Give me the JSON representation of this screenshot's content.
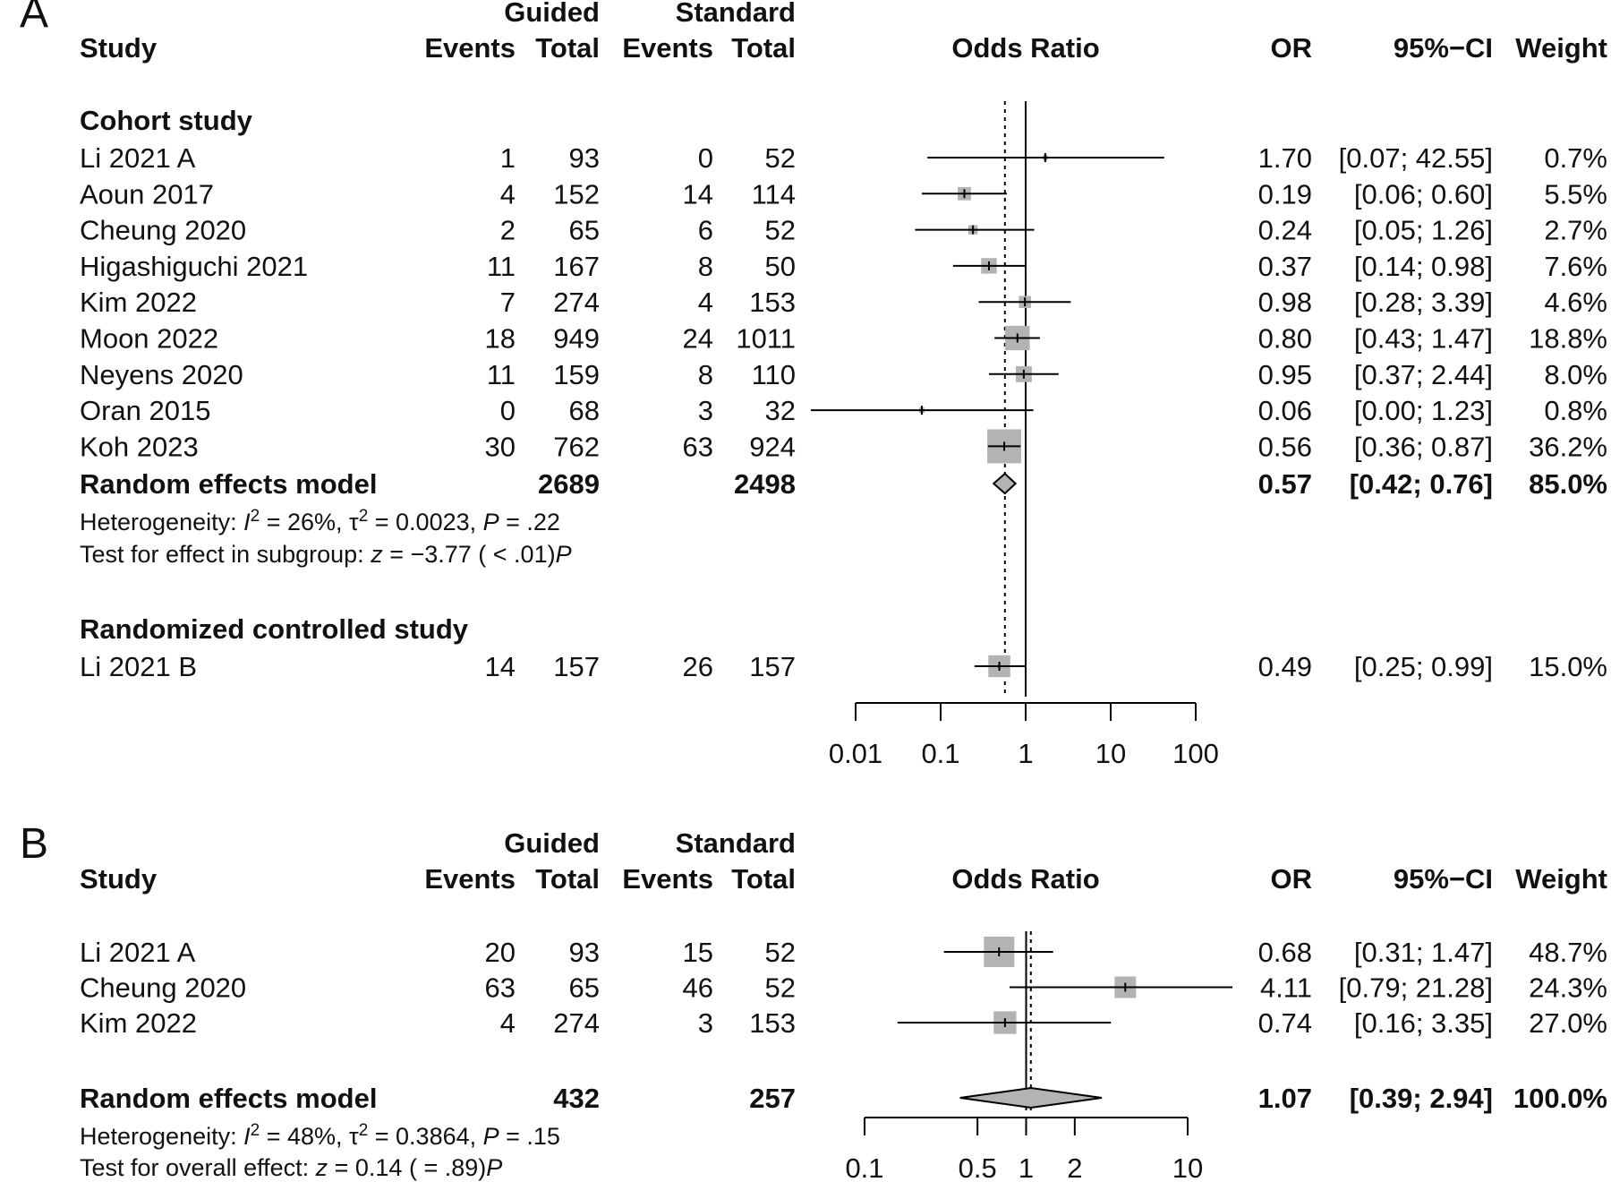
{
  "colors": {
    "text": "#111111",
    "box": "#b3b3b3",
    "diamond": "#b3b3b3",
    "line": "#000000",
    "background": "#ffffff"
  },
  "chart_data": [
    {
      "type": "forest",
      "panel_label": "A",
      "group_headers": [
        "Guided",
        "Standard"
      ],
      "columns": [
        "Study",
        "Events",
        "Total",
        "Events",
        "Total",
        "Odds Ratio",
        "OR",
        "95%−CI",
        "Weight"
      ],
      "x_axis": {
        "scale": "log",
        "ticks": [
          0.01,
          0.1,
          1,
          10,
          100
        ],
        "tick_labels": [
          "0.01",
          "0.1",
          "1",
          "10",
          "100"
        ],
        "range": [
          0.01,
          100
        ]
      },
      "null_line": 1,
      "pooled_line": 0.57,
      "sections": [
        {
          "title": "Cohort study",
          "studies": [
            {
              "study": "Li 2021 A",
              "ge": "1",
              "gt": "93",
              "se": "0",
              "st": "52",
              "or": 1.7,
              "lo": 0.07,
              "hi": 42.55,
              "or_text": "1.70",
              "ci_text": "[0.07; 42.55]",
              "weight_text": "0.7%",
              "weight": 0.7
            },
            {
              "study": "Aoun 2017",
              "ge": "4",
              "gt": "152",
              "se": "14",
              "st": "114",
              "or": 0.19,
              "lo": 0.06,
              "hi": 0.6,
              "or_text": "0.19",
              "ci_text": "[0.06;  0.60]",
              "weight_text": "5.5%",
              "weight": 5.5
            },
            {
              "study": "Cheung 2020",
              "ge": "2",
              "gt": "65",
              "se": "6",
              "st": "52",
              "or": 0.24,
              "lo": 0.05,
              "hi": 1.26,
              "or_text": "0.24",
              "ci_text": "[0.05;  1.26]",
              "weight_text": "2.7%",
              "weight": 2.7
            },
            {
              "study": "Higashiguchi 2021",
              "ge": "11",
              "gt": "167",
              "se": "8",
              "st": "50",
              "or": 0.37,
              "lo": 0.14,
              "hi": 0.98,
              "or_text": "0.37",
              "ci_text": "[0.14;  0.98]",
              "weight_text": "7.6%",
              "weight": 7.6
            },
            {
              "study": "Kim 2022",
              "ge": "7",
              "gt": "274",
              "se": "4",
              "st": "153",
              "or": 0.98,
              "lo": 0.28,
              "hi": 3.39,
              "or_text": "0.98",
              "ci_text": "[0.28;  3.39]",
              "weight_text": "4.6%",
              "weight": 4.6
            },
            {
              "study": "Moon 2022",
              "ge": "18",
              "gt": "949",
              "se": "24",
              "st": "1011",
              "or": 0.8,
              "lo": 0.43,
              "hi": 1.47,
              "or_text": "0.80",
              "ci_text": "[0.43;  1.47]",
              "weight_text": "18.8%",
              "weight": 18.8
            },
            {
              "study": "Neyens 2020",
              "ge": "11",
              "gt": "159",
              "se": "8",
              "st": "110",
              "or": 0.95,
              "lo": 0.37,
              "hi": 2.44,
              "or_text": "0.95",
              "ci_text": "[0.37;  2.44]",
              "weight_text": "8.0%",
              "weight": 8.0
            },
            {
              "study": "Oran 2015",
              "ge": "0",
              "gt": "68",
              "se": "3",
              "st": "32",
              "or": 0.06,
              "lo": 0.0,
              "hi": 1.23,
              "or_text": "0.06",
              "ci_text": "[0.00;  1.23]",
              "weight_text": "0.8%",
              "weight": 0.8
            },
            {
              "study": "Koh 2023",
              "ge": "30",
              "gt": "762",
              "se": "63",
              "st": "924",
              "or": 0.56,
              "lo": 0.36,
              "hi": 0.87,
              "or_text": "0.56",
              "ci_text": "[0.36;  0.87]",
              "weight_text": "36.2%",
              "weight": 36.2
            }
          ],
          "pooled": {
            "label": "Random effects model",
            "gt": "2689",
            "st": "2498",
            "or": 0.57,
            "lo": 0.42,
            "hi": 0.76,
            "or_text": "0.57",
            "ci_text": "[0.42;  0.76]",
            "weight_text": "85.0%"
          },
          "stats": [
            {
              "plain": "Heterogeneity: ",
              "italic": "I",
              "sup": "2",
              "rest": " = 26%, τ",
              "sup2": "2",
              "rest2": " = 0.0023, ",
              "italic2": "P",
              "rest3": " = .22"
            },
            {
              "plain": "Test for effect in subgroup: ",
              "italic": "z",
              "rest": " = −3.77 (",
              "italic2": "P",
              "rest2": " < .01)"
            }
          ]
        },
        {
          "title": "Randomized controlled study",
          "studies": [
            {
              "study": "Li 2021 B",
              "ge": "14",
              "gt": "157",
              "se": "26",
              "st": "157",
              "or": 0.49,
              "lo": 0.25,
              "hi": 0.99,
              "or_text": "0.49",
              "ci_text": "[0.25;  0.99]",
              "weight_text": "15.0%",
              "weight": 15.0
            }
          ]
        }
      ]
    },
    {
      "type": "forest",
      "panel_label": "B",
      "group_headers": [
        "Guided",
        "Standard"
      ],
      "columns": [
        "Study",
        "Events",
        "Total",
        "Events",
        "Total",
        "Odds Ratio",
        "OR",
        "95%−CI",
        "Weight"
      ],
      "x_axis": {
        "scale": "log",
        "ticks": [
          0.1,
          0.5,
          1,
          2,
          10
        ],
        "tick_labels": [
          "0.1",
          "0.5",
          "1",
          "2",
          "10"
        ],
        "range": [
          0.1,
          10
        ]
      },
      "null_line": 1,
      "pooled_line": 1.07,
      "studies": [
        {
          "study": "Li 2021 A",
          "ge": "20",
          "gt": "93",
          "se": "15",
          "st": "52",
          "or": 0.68,
          "lo": 0.31,
          "hi": 1.47,
          "or_text": "0.68",
          "ci_text": "[0.31;  1.47]",
          "weight_text": "48.7%",
          "weight": 48.7
        },
        {
          "study": "Cheung 2020",
          "ge": "63",
          "gt": "65",
          "se": "46",
          "st": "52",
          "or": 4.11,
          "lo": 0.79,
          "hi": 21.28,
          "or_text": "4.11",
          "ci_text": "[0.79; 21.28]",
          "weight_text": "24.3%",
          "weight": 24.3
        },
        {
          "study": "Kim 2022",
          "ge": "4",
          "gt": "274",
          "se": "3",
          "st": "153",
          "or": 0.74,
          "lo": 0.16,
          "hi": 3.35,
          "or_text": "0.74",
          "ci_text": "[0.16;  3.35]",
          "weight_text": "27.0%",
          "weight": 27.0
        }
      ],
      "pooled": {
        "label": "Random effects model",
        "gt": "432",
        "st": "257",
        "or": 1.07,
        "lo": 0.39,
        "hi": 2.94,
        "or_text": "1.07",
        "ci_text": "[0.39;  2.94]",
        "weight_text": "100.0%"
      },
      "stats": [
        {
          "plain": "Heterogeneity: ",
          "italic": "I",
          "sup": "2",
          "rest": " = 48%, τ",
          "sup2": "2",
          "rest2": " = 0.3864, ",
          "italic2": "P",
          "rest3": " = .15"
        },
        {
          "plain": "Test for overall effect: ",
          "italic": "z",
          "rest": " = 0.14 (",
          "italic2": "P",
          "rest2": " = .89)"
        }
      ]
    }
  ]
}
